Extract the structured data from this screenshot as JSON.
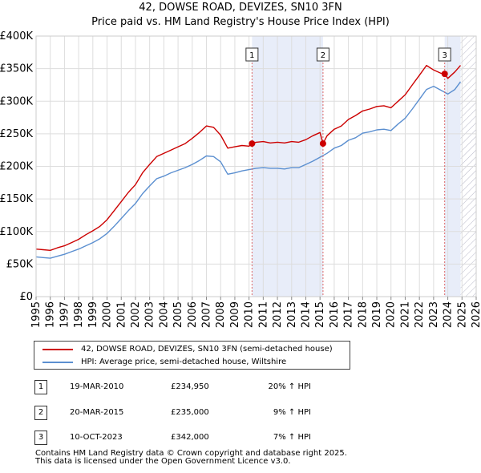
{
  "chart_data": {
    "type": "line",
    "title": "42, DOWSE ROAD, DEVIZES, SN10 3FN",
    "subtitle": "Price paid vs. HM Land Registry's House Price Index (HPI)",
    "xlim": [
      1995,
      2026
    ],
    "ylim": [
      0,
      400000
    ],
    "x_ticks": [
      "1995",
      "1996",
      "1997",
      "1998",
      "1999",
      "2000",
      "2001",
      "2002",
      "2003",
      "2004",
      "2005",
      "2006",
      "2007",
      "2008",
      "2009",
      "2010",
      "2011",
      "2012",
      "2013",
      "2014",
      "2015",
      "2016",
      "2017",
      "2018",
      "2019",
      "2020",
      "2021",
      "2022",
      "2023",
      "2024",
      "2025",
      "2026"
    ],
    "y_ticks": [
      {
        "value": 0,
        "label": "£0"
      },
      {
        "value": 50000,
        "label": "£50K"
      },
      {
        "value": 100000,
        "label": "£100K"
      },
      {
        "value": 150000,
        "label": "£150K"
      },
      {
        "value": 200000,
        "label": "£200K"
      },
      {
        "value": 250000,
        "label": "£250K"
      },
      {
        "value": 300000,
        "label": "£300K"
      },
      {
        "value": 350000,
        "label": "£350K"
      },
      {
        "value": 400000,
        "label": "£400K"
      }
    ],
    "grid": true,
    "shaded_periods": [
      {
        "start": 2010.21,
        "end": 2015.21
      },
      {
        "start": 2023.78,
        "end": 2024.9
      }
    ],
    "hatched_after": 2024.9,
    "series": [
      {
        "name": "42, DOWSE ROAD, DEVIZES, SN10 3FN (semi-detached house)",
        "color": "#cc0000",
        "x": [
          1995.0,
          1995.5,
          1996.0,
          1996.5,
          1997.0,
          1997.5,
          1998.0,
          1998.5,
          1999.0,
          1999.5,
          2000.0,
          2000.5,
          2001.0,
          2001.5,
          2002.0,
          2002.5,
          2003.0,
          2003.5,
          2004.0,
          2004.5,
          2005.0,
          2005.5,
          2006.0,
          2006.5,
          2007.0,
          2007.5,
          2008.0,
          2008.5,
          2009.0,
          2009.5,
          2010.0,
          2010.21,
          2010.5,
          2011.0,
          2011.5,
          2012.0,
          2012.5,
          2013.0,
          2013.5,
          2014.0,
          2014.5,
          2015.0,
          2015.21,
          2015.5,
          2016.0,
          2016.5,
          2017.0,
          2017.5,
          2018.0,
          2018.5,
          2019.0,
          2019.5,
          2020.0,
          2020.5,
          2021.0,
          2021.5,
          2022.0,
          2022.5,
          2023.0,
          2023.5,
          2023.78,
          2024.0,
          2024.5,
          2024.9
        ],
        "y": [
          73000,
          72000,
          71000,
          75000,
          78000,
          83000,
          88000,
          95000,
          101000,
          108000,
          118000,
          132000,
          146000,
          160000,
          172000,
          190000,
          203000,
          215000,
          220000,
          225000,
          230000,
          235000,
          243000,
          252000,
          262000,
          260000,
          248000,
          228000,
          230000,
          232000,
          231000,
          234950,
          237000,
          238000,
          236000,
          237000,
          236000,
          238000,
          237000,
          241000,
          247000,
          252000,
          235000,
          247000,
          257000,
          262000,
          272000,
          278000,
          285000,
          288000,
          292000,
          293000,
          290000,
          300000,
          310000,
          325000,
          340000,
          355000,
          348000,
          343000,
          342000,
          335000,
          345000,
          355000
        ]
      },
      {
        "name": "HPI: Average price, semi-detached house, Wiltshire",
        "color": "#5b8fd0",
        "x": [
          1995.0,
          1995.5,
          1996.0,
          1996.5,
          1997.0,
          1997.5,
          1998.0,
          1998.5,
          1999.0,
          1999.5,
          2000.0,
          2000.5,
          2001.0,
          2001.5,
          2002.0,
          2002.5,
          2003.0,
          2003.5,
          2004.0,
          2004.5,
          2005.0,
          2005.5,
          2006.0,
          2006.5,
          2007.0,
          2007.5,
          2008.0,
          2008.5,
          2009.0,
          2009.5,
          2010.0,
          2010.5,
          2011.0,
          2011.5,
          2012.0,
          2012.5,
          2013.0,
          2013.5,
          2014.0,
          2014.5,
          2015.0,
          2015.5,
          2016.0,
          2016.5,
          2017.0,
          2017.5,
          2018.0,
          2018.5,
          2019.0,
          2019.5,
          2020.0,
          2020.5,
          2021.0,
          2021.5,
          2022.0,
          2022.5,
          2023.0,
          2023.5,
          2024.0,
          2024.5,
          2024.9
        ],
        "y": [
          61000,
          60000,
          59000,
          62000,
          65000,
          69000,
          73000,
          78000,
          83000,
          89000,
          97000,
          108000,
          120000,
          132000,
          143000,
          158000,
          170000,
          181000,
          185000,
          190000,
          194000,
          198000,
          203000,
          209000,
          216000,
          215000,
          207000,
          188000,
          190000,
          193000,
          195000,
          197000,
          198000,
          197000,
          197000,
          196000,
          198000,
          198000,
          203000,
          208000,
          214000,
          220000,
          228000,
          232000,
          240000,
          244000,
          251000,
          253000,
          256000,
          257000,
          255000,
          265000,
          274000,
          288000,
          303000,
          318000,
          323000,
          317000,
          311000,
          318000,
          330000
        ]
      }
    ],
    "sales": [
      {
        "label": "1",
        "x": 2010.21,
        "y": 234950
      },
      {
        "label": "2",
        "x": 2015.21,
        "y": 235000
      },
      {
        "label": "3",
        "x": 2023.78,
        "y": 342000
      }
    ]
  },
  "legend": {
    "property": "42, DOWSE ROAD, DEVIZES, SN10 3FN (semi-detached house)",
    "hpi": "HPI: Average price, semi-detached house, Wiltshire",
    "property_color": "#cc0000",
    "hpi_color": "#5b8fd0"
  },
  "sales_table": [
    {
      "num": "1",
      "date": "19-MAR-2010",
      "price": "£234,950",
      "hpi": "20% ↑ HPI"
    },
    {
      "num": "2",
      "date": "20-MAR-2015",
      "price": "£235,000",
      "hpi": "9% ↑ HPI"
    },
    {
      "num": "3",
      "date": "10-OCT-2023",
      "price": "£342,000",
      "hpi": "7% ↑ HPI"
    }
  ],
  "footer": {
    "line1": "Contains HM Land Registry data © Crown copyright and database right 2025.",
    "line2": "This data is licensed under the Open Government Licence v3.0."
  }
}
